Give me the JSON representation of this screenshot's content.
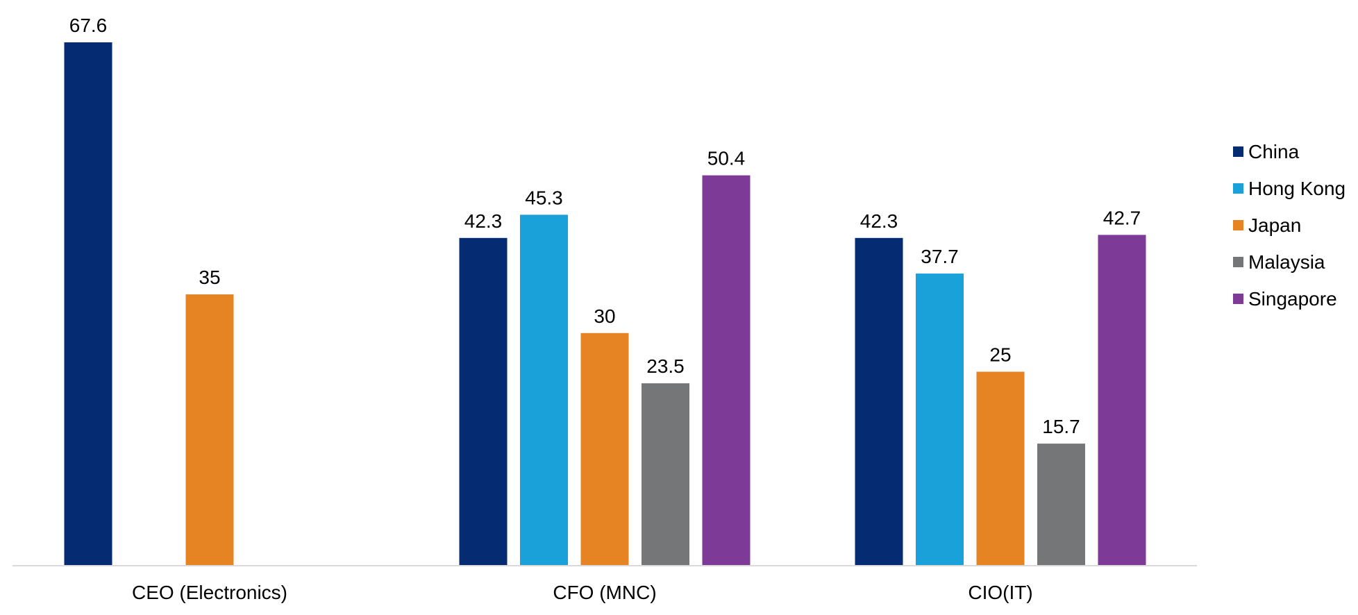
{
  "chart_data": {
    "type": "bar",
    "categories": [
      "CEO (Electronics)",
      "CFO (MNC)",
      "CIO(IT)"
    ],
    "series": [
      {
        "name": "China",
        "color": "#052B73",
        "values": [
          67.6,
          42.3,
          42.3
        ]
      },
      {
        "name": "Hong Kong",
        "color": "#1BA1DA",
        "values": [
          null,
          45.3,
          37.7
        ]
      },
      {
        "name": "Japan",
        "color": "#E68323",
        "values": [
          35,
          30,
          25
        ]
      },
      {
        "name": "Malaysia",
        "color": "#757677",
        "values": [
          null,
          23.5,
          15.7
        ]
      },
      {
        "name": "Singapore",
        "color": "#7E3A97",
        "values": [
          null,
          50.4,
          42.7
        ]
      }
    ],
    "data_labels": [
      [
        "67.6",
        null,
        "35",
        null,
        null
      ],
      [
        "42.3",
        "45.3",
        "30",
        "23.5",
        "50.4"
      ],
      [
        "42.3",
        "37.7",
        "25",
        "15.7",
        "42.7"
      ]
    ],
    "ylim": [
      0,
      70
    ],
    "grid": false,
    "legend_position": "right",
    "axis_color": "#D9D9D9"
  }
}
